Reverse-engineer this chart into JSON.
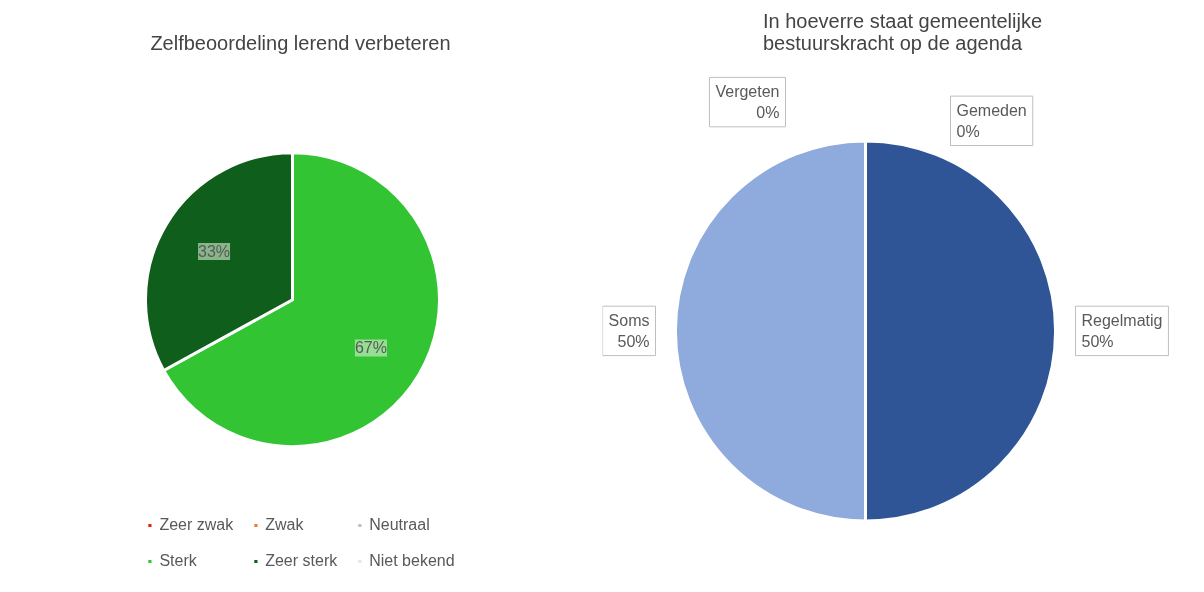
{
  "chart_data": [
    {
      "type": "pie",
      "title": "Zelfbeoordeling lerend verbeteren",
      "categories": [
        "Zeer zwak",
        "Zwak",
        "Neutraal",
        "Sterk",
        "Zeer sterk",
        "Niet bekend"
      ],
      "values": [
        0,
        0,
        0,
        67,
        33,
        0
      ],
      "colors": [
        "#e0201b",
        "#ed7d31",
        "#bfbfbf",
        "#33c433",
        "#0f5e1b",
        "#e6e6e6"
      ],
      "value_labels": [
        null,
        null,
        null,
        "67%",
        "33%",
        null
      ],
      "legend": "bottom"
    },
    {
      "type": "pie",
      "title": "In hoeverre staat gemeentelijke\nbestuurskracht op de agenda",
      "categories": [
        "Gemeden",
        "Regelmatig",
        "Soms",
        "Vergeten"
      ],
      "values": [
        0,
        50,
        50,
        0
      ],
      "colors": [
        "#1f3864",
        "#2f5597",
        "#8faadc",
        "#b4c7e7"
      ],
      "value_labels": [
        "0%",
        "50%",
        "50%",
        "0%"
      ]
    }
  ]
}
